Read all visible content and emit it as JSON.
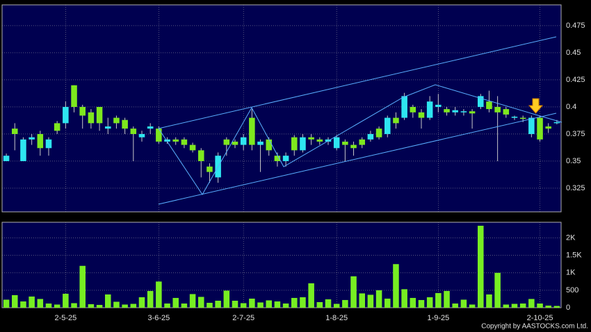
{
  "chart_data": {
    "type": "candlestick",
    "categories": [
      null,
      null,
      null,
      null,
      null,
      null,
      null,
      "2-5-25",
      null,
      null,
      null,
      null,
      null,
      null,
      null,
      null,
      null,
      null,
      "3-6-25",
      null,
      null,
      null,
      null,
      null,
      null,
      null,
      null,
      null,
      "2-7-25",
      null,
      null,
      null,
      null,
      null,
      null,
      null,
      null,
      null,
      null,
      "1-8-25",
      null,
      null,
      null,
      null,
      null,
      null,
      null,
      null,
      null,
      null,
      null,
      "1-9-25",
      null,
      null,
      null,
      null,
      null,
      null,
      null,
      null,
      null,
      null,
      null,
      "2-10-25",
      null,
      null
    ],
    "open": [
      0.35,
      0.38,
      0.35,
      0.37,
      0.375,
      0.362,
      0.385,
      0.385,
      0.42,
      0.4,
      0.395,
      0.4,
      0.38,
      0.39,
      0.388,
      0.38,
      0.372,
      0.38,
      0.38,
      0.368,
      0.37,
      0.37,
      0.365,
      0.36,
      0.345,
      0.335,
      0.37,
      0.368,
      0.365,
      0.39,
      0.365,
      0.37,
      0.355,
      0.35,
      0.372,
      0.36,
      0.372,
      0.37,
      0.368,
      0.362,
      0.368,
      0.365,
      0.37,
      0.37,
      0.38,
      0.375,
      0.39,
      0.39,
      0.4,
      0.395,
      0.39,
      0.4,
      0.398,
      0.395,
      0.395,
      0.396,
      0.4,
      0.405,
      0.4,
      0.398,
      0.39,
      0.39,
      0.375,
      0.39,
      0.382,
      0.385
    ],
    "high": [
      0.357,
      0.385,
      0.372,
      0.375,
      0.378,
      0.372,
      0.387,
      0.405,
      0.42,
      0.402,
      0.398,
      0.4,
      0.39,
      0.392,
      0.39,
      0.382,
      0.378,
      0.385,
      0.382,
      0.372,
      0.372,
      0.372,
      0.367,
      0.362,
      0.348,
      0.358,
      0.372,
      0.37,
      0.375,
      0.398,
      0.37,
      0.372,
      0.358,
      0.358,
      0.374,
      0.375,
      0.375,
      0.372,
      0.372,
      0.374,
      0.37,
      0.368,
      0.372,
      0.378,
      0.382,
      0.392,
      0.395,
      0.413,
      0.402,
      0.398,
      0.41,
      0.412,
      0.4,
      0.4,
      0.398,
      0.398,
      0.412,
      0.415,
      0.41,
      0.4,
      0.392,
      0.392,
      0.392,
      0.392,
      0.385,
      0.388
    ],
    "low": [
      0.35,
      0.36,
      0.35,
      0.365,
      0.355,
      0.355,
      0.375,
      0.38,
      0.395,
      0.38,
      0.38,
      0.378,
      0.375,
      0.38,
      0.375,
      0.35,
      0.368,
      0.375,
      0.366,
      0.366,
      0.365,
      0.362,
      0.358,
      0.335,
      0.33,
      0.33,
      0.355,
      0.362,
      0.36,
      0.36,
      0.34,
      0.355,
      0.345,
      0.345,
      0.355,
      0.358,
      0.365,
      0.365,
      0.365,
      0.36,
      0.35,
      0.355,
      0.362,
      0.368,
      0.37,
      0.372,
      0.38,
      0.388,
      0.39,
      0.38,
      0.388,
      0.395,
      0.392,
      0.392,
      0.392,
      0.38,
      0.398,
      0.395,
      0.35,
      0.39,
      0.388,
      0.386,
      0.372,
      0.368,
      0.376,
      0.384
    ],
    "close": [
      0.355,
      0.375,
      0.37,
      0.372,
      0.362,
      0.37,
      0.378,
      0.4,
      0.4,
      0.392,
      0.385,
      0.385,
      0.382,
      0.385,
      0.38,
      0.375,
      0.375,
      0.382,
      0.368,
      0.37,
      0.368,
      0.365,
      0.36,
      0.35,
      0.34,
      0.355,
      0.365,
      0.365,
      0.372,
      0.365,
      0.368,
      0.36,
      0.35,
      0.355,
      0.36,
      0.372,
      0.37,
      0.368,
      0.37,
      0.372,
      0.365,
      0.362,
      0.365,
      0.375,
      0.372,
      0.39,
      0.385,
      0.41,
      0.395,
      0.39,
      0.405,
      0.402,
      0.395,
      0.397,
      0.396,
      0.394,
      0.41,
      0.398,
      0.395,
      0.393,
      0.391,
      0.389,
      0.39,
      0.37,
      0.38,
      0.386
    ],
    "volume": [
      230,
      360,
      180,
      320,
      250,
      120,
      90,
      400,
      130,
      1200,
      100,
      80,
      380,
      170,
      90,
      110,
      300,
      480,
      750,
      120,
      280,
      120,
      390,
      310,
      140,
      200,
      490,
      200,
      130,
      260,
      150,
      210,
      180,
      120,
      280,
      300,
      700,
      160,
      240,
      110,
      220,
      900,
      410,
      370,
      500,
      260,
      1250,
      530,
      280,
      220,
      300,
      420,
      480,
      120,
      230,
      90,
      2350,
      380,
      1000,
      90,
      110,
      120,
      250,
      120,
      60,
      50
    ],
    "up_color": "#2ee6f0",
    "down_color": "#7ee81e",
    "volume_color": "#77ee22",
    "ylim": [
      0.3032,
      0.4942
    ],
    "yticks": [
      0.325,
      0.35,
      0.375,
      0.4,
      0.425,
      0.45,
      0.475
    ],
    "volume_ylim": [
      0,
      2450
    ],
    "volume_yticks": [
      0,
      500,
      {
        "value": 1000,
        "label": "1K"
      },
      {
        "value": 1500,
        "label": "1.5K"
      },
      {
        "value": 2000,
        "label": "2K"
      }
    ],
    "grid": true,
    "copyright": "Copyright by AASTOCKS.com Ltd."
  }
}
